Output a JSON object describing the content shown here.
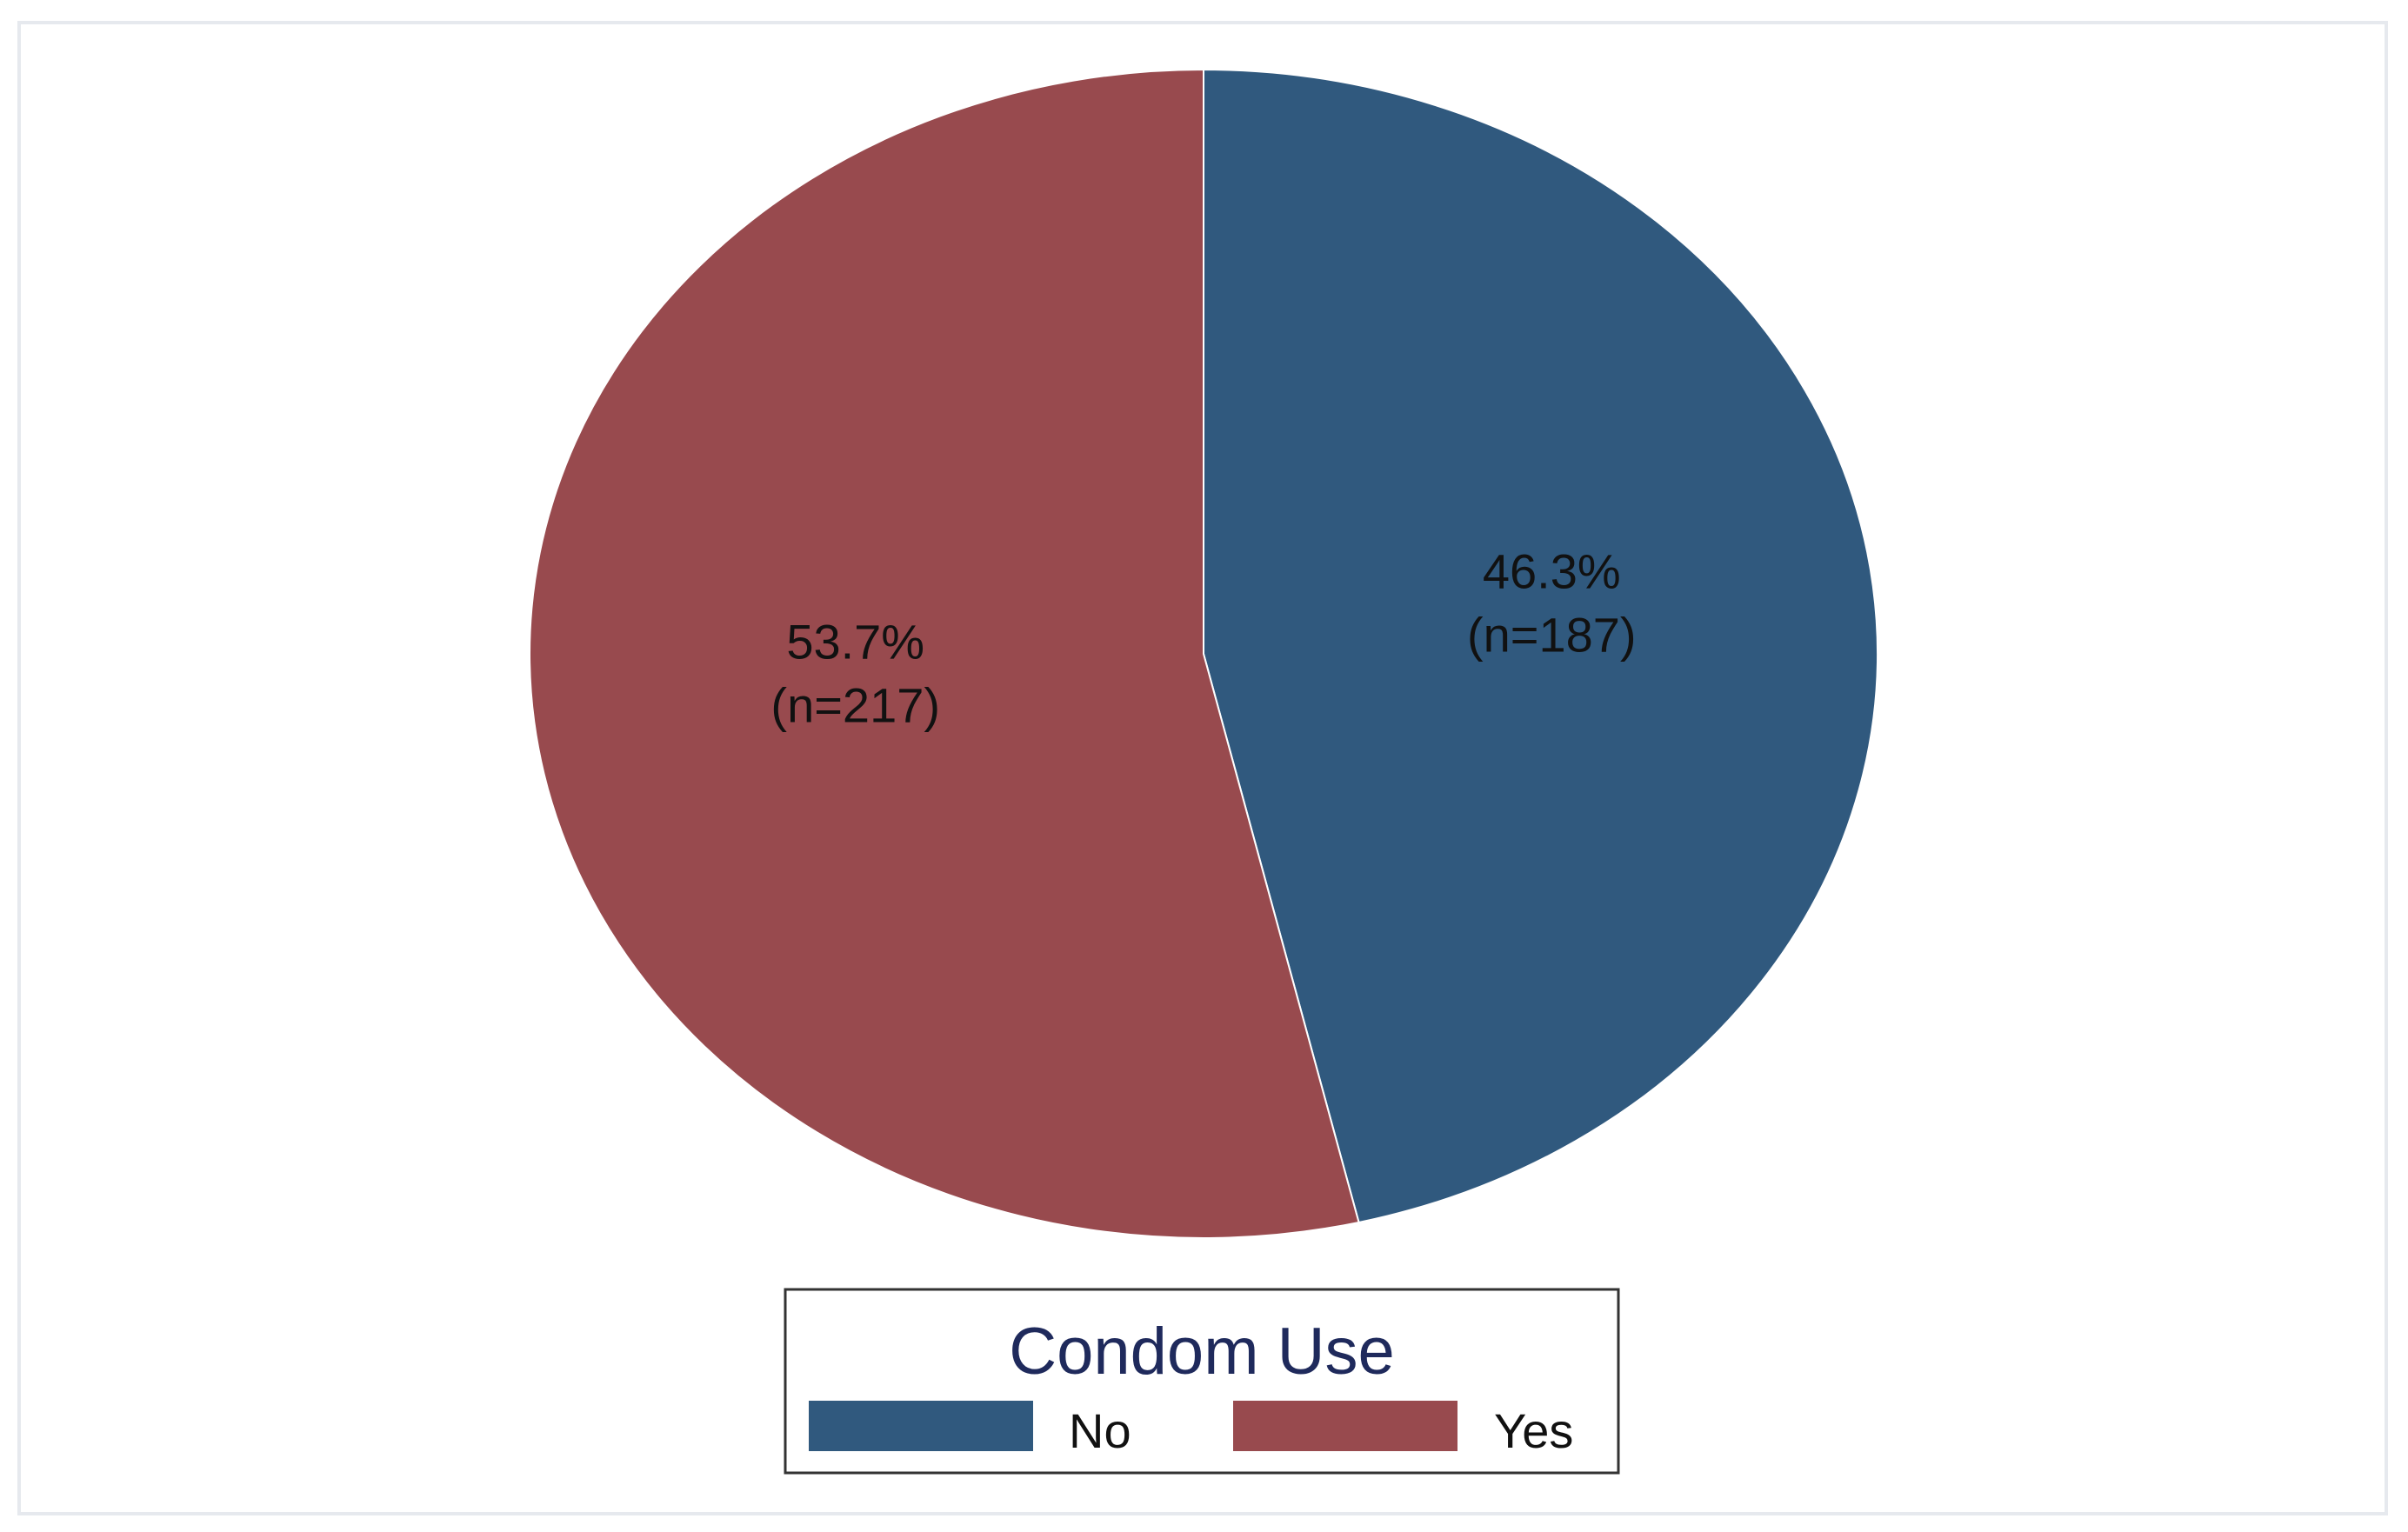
{
  "chart_data": {
    "type": "pie",
    "title": "",
    "legend": {
      "title": "Condom Use",
      "position": "bottom"
    },
    "slices": [
      {
        "name": "No",
        "value": 46.3,
        "count": 187,
        "color": "#30597e",
        "pct_label": "46.3%",
        "n_label": "(n=187)"
      },
      {
        "name": "Yes",
        "value": 53.7,
        "count": 217,
        "color": "#984a4e",
        "pct_label": "53.7%",
        "n_label": "(n=217)"
      }
    ],
    "start_angle": "12 o'clock",
    "direction": "clockwise"
  }
}
